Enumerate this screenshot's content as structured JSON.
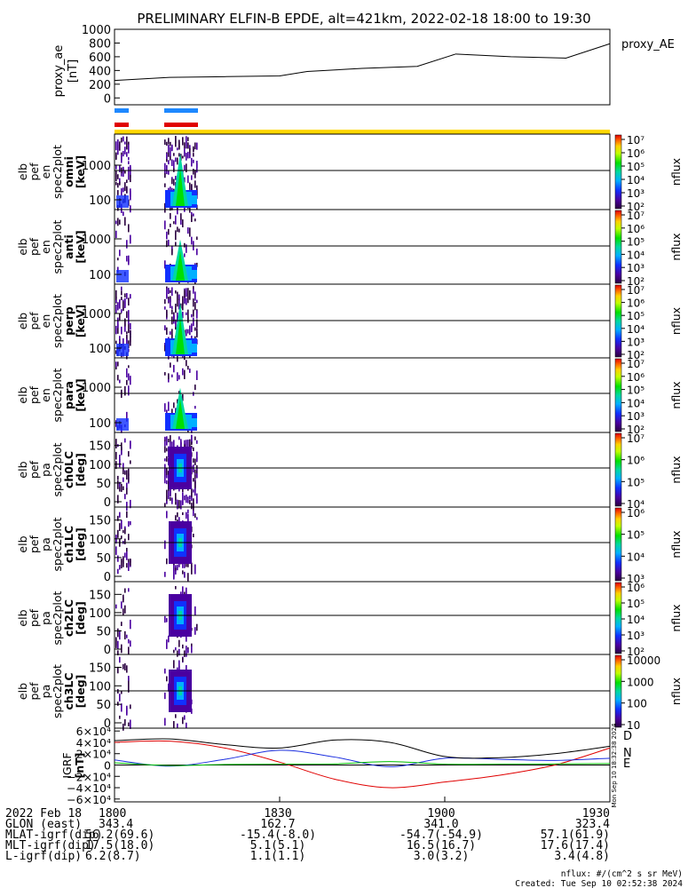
{
  "title": "PRELIMINARY ELFIN-B EPDE, alt=421km, 2022-02-18 18:00 to 19:30",
  "colors": {
    "blue_bar": "#1e88ff",
    "red_bar": "#e00000",
    "yellow_bar": "#ffd700",
    "ae_line": "#000000",
    "igrf_D": "#e00000",
    "igrf_N": "#1c2fe0",
    "igrf_E": "#00c000",
    "igrf_total": "#000000"
  },
  "chart_data": [
    {
      "type": "line",
      "panel": "proxy_ae",
      "ylabel": "proxy_ae\n[nT]",
      "legend": "proxy_AE",
      "yticks": [
        "1000",
        "800",
        "600",
        "400",
        "200",
        "0"
      ],
      "ylim": [
        -100,
        1000
      ],
      "x_minutes": [
        0,
        10,
        20,
        30,
        35,
        45,
        55,
        62,
        72,
        82,
        90
      ],
      "values": [
        255,
        300,
        310,
        320,
        385,
        430,
        460,
        640,
        600,
        580,
        790
      ]
    },
    {
      "type": "heatmap",
      "panel": "elb_pef_en_spec2plot_omni",
      "ylabel": [
        "elb",
        "pef",
        "en",
        "spec2plot",
        "omni",
        "[keV]"
      ],
      "yticks": [
        "1000",
        "100"
      ],
      "colorbar_label": "nflux",
      "colorbar_ticks": [
        "10⁷",
        "10⁶",
        "10⁵",
        "10⁴",
        "10³",
        "10²"
      ]
    },
    {
      "type": "heatmap",
      "panel": "elb_pef_en_spec2plot_anti",
      "ylabel": [
        "elb",
        "pef",
        "en",
        "spec2plot",
        "anti",
        "[keV]"
      ],
      "yticks": [
        "1000",
        "100"
      ],
      "colorbar_label": "nflux",
      "colorbar_ticks": [
        "10⁷",
        "10⁶",
        "10⁵",
        "10⁴",
        "10³",
        "10²"
      ]
    },
    {
      "type": "heatmap",
      "panel": "elb_pef_en_spec2plot_perp",
      "ylabel": [
        "elb",
        "pef",
        "en",
        "spec2plot",
        "perp",
        "[keV]"
      ],
      "yticks": [
        "1000",
        "100"
      ],
      "colorbar_label": "nflux",
      "colorbar_ticks": [
        "10⁷",
        "10⁶",
        "10⁵",
        "10⁴",
        "10³",
        "10²"
      ]
    },
    {
      "type": "heatmap",
      "panel": "elb_pef_en_spec2plot_para",
      "ylabel": [
        "elb",
        "pef",
        "en",
        "spec2plot",
        "para",
        "[keV]"
      ],
      "yticks": [
        "1000",
        "100"
      ],
      "colorbar_label": "nflux",
      "colorbar_ticks": [
        "10⁷",
        "10⁶",
        "10⁵",
        "10⁴",
        "10³",
        "10²"
      ]
    },
    {
      "type": "heatmap",
      "panel": "elb_pef_pa_spec2plot_ch0LC",
      "ylabel": [
        "elb",
        "pef",
        "pa",
        "spec2plot",
        "ch0LC",
        "[deg]"
      ],
      "yticks": [
        "150",
        "100",
        "50",
        "0"
      ],
      "colorbar_label": "nflux",
      "colorbar_ticks": [
        "10⁷",
        "10⁶",
        "10⁵",
        "10⁴"
      ]
    },
    {
      "type": "heatmap",
      "panel": "elb_pef_pa_spec2plot_ch1LC",
      "ylabel": [
        "elb",
        "pef",
        "pa",
        "spec2plot",
        "ch1LC",
        "[deg]"
      ],
      "yticks": [
        "150",
        "100",
        "50",
        "0"
      ],
      "colorbar_label": "nflux",
      "colorbar_ticks": [
        "10⁶",
        "10⁵",
        "10⁴",
        "10³"
      ]
    },
    {
      "type": "heatmap",
      "panel": "elb_pef_pa_spec2plot_ch2LC",
      "ylabel": [
        "elb",
        "pef",
        "pa",
        "spec2plot",
        "ch2LC",
        "[deg]"
      ],
      "yticks": [
        "150",
        "100",
        "50",
        "0"
      ],
      "colorbar_label": "nflux",
      "colorbar_ticks": [
        "10⁶",
        "10⁵",
        "10⁴",
        "10³",
        "10²"
      ]
    },
    {
      "type": "heatmap",
      "panel": "elb_pef_pa_spec2plot_ch3LC",
      "ylabel": [
        "elb",
        "pef",
        "pa",
        "spec2plot",
        "ch3LC",
        "[deg]"
      ],
      "yticks": [
        "150",
        "100",
        "50",
        "0"
      ],
      "colorbar_label": "nflux",
      "colorbar_ticks": [
        "10000",
        "1000",
        "100",
        "10"
      ]
    },
    {
      "type": "line",
      "panel": "igrf",
      "ylabel": "IGRF\n[nT]",
      "yticks": [
        "6×10⁴",
        "4×10⁴",
        "2×10⁴",
        "0",
        "−2×10⁴",
        "−4×10⁴",
        "−6×10⁴"
      ],
      "ylim": [
        -65000,
        65000
      ],
      "x_minutes": [
        0,
        10,
        20,
        30,
        40,
        50,
        60,
        70,
        80,
        90
      ],
      "series": [
        {
          "name": "D",
          "values": [
            40000,
            42000,
            30000,
            5000,
            -25000,
            -40000,
            -30000,
            -18000,
            0,
            30000
          ]
        },
        {
          "name": "N",
          "values": [
            9000,
            -2000,
            10000,
            26000,
            14000,
            -3000,
            12000,
            10000,
            8000,
            12000
          ]
        },
        {
          "name": "E",
          "values": [
            4000,
            -1000,
            1000,
            1500,
            2000,
            6000,
            1500,
            1500,
            2000,
            2500
          ]
        },
        {
          "name": "total",
          "values": [
            43000,
            46000,
            36000,
            30000,
            44000,
            40000,
            15000,
            13000,
            20000,
            33000
          ]
        }
      ],
      "legend": [
        "D",
        "N",
        "E"
      ],
      "side_label": "Mon Sep 10 18:32:38 2024"
    }
  ],
  "xticks": [
    "1800",
    "1830",
    "1900",
    "1930"
  ],
  "footer": {
    "rows": [
      {
        "label": "2022 Feb 18",
        "values": [
          "1800",
          "1830",
          "1900",
          "1930"
        ]
      },
      {
        "label": "GLON (east)",
        "values": [
          "343.4",
          "162.7",
          "341.0",
          "323.4"
        ]
      },
      {
        "label": "MLAT-igrf(dip)",
        "values": "56.2(69.6)",
        "cols": [
          "56.2(69.6)",
          "-15.4(-8.0)",
          "-54.7(-54.9)",
          "57.1(61.9)"
        ]
      },
      {
        "label": "MLT-igrf(dip)",
        "cols": [
          "17.5(18.0)",
          "5.1(5.1)",
          "16.5(16.7)",
          "17.6(17.4)"
        ]
      },
      {
        "label": "L-igrf(dip)",
        "cols": [
          "6.2(8.7)",
          "1.1(1.1)",
          "3.0(3.2)",
          "3.4(4.8)"
        ]
      }
    ],
    "units_note": "nflux: #/(cm^2 s sr MeV)",
    "created": "Created: Tue Sep 10 02:52:38 2024"
  }
}
